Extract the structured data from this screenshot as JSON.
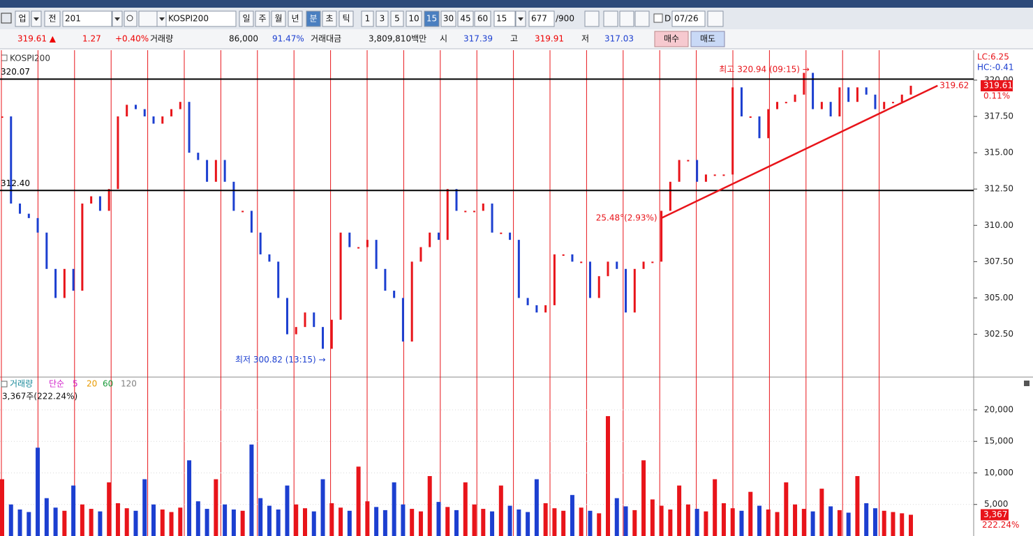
{
  "toolbar": {
    "market": "업",
    "mode": "전",
    "code": "201",
    "name": "KOSPI200",
    "periods": [
      "일",
      "주",
      "월",
      "년",
      "분",
      "초",
      "틱"
    ],
    "selected_period": "분",
    "intervals": [
      "1",
      "3",
      "5",
      "10",
      "15",
      "30",
      "45",
      "60"
    ],
    "selected_interval": "15",
    "interval": "15",
    "count": "677",
    "max": "/900",
    "day_check": "D",
    "date": "07/26"
  },
  "quote": {
    "price": "319.61 ▲",
    "change": "1.27",
    "change_pct": "+0.40%",
    "volume_label": "거래량",
    "volume": "86,000",
    "volume_ratio": "91.47%",
    "amount_label": "거래대금",
    "amount": "3,809,810백만",
    "open_label": "시",
    "open": "317.39",
    "high_label": "고",
    "high": "319.91",
    "low_label": "저",
    "low": "317.03",
    "buy": "매수",
    "sell": "매도"
  },
  "chart_data": [
    {
      "type": "line",
      "title": "KOSPI200",
      "color": "#e8141a",
      "down_color": "#1c3fd0",
      "values": [
        317.5,
        311.5,
        310.8,
        310.5,
        309.5,
        307,
        305,
        307,
        305.5,
        311.5,
        312,
        311,
        312.5,
        317.5,
        318.3,
        318,
        317.5,
        317,
        317.5,
        318,
        318.5,
        315,
        314.5,
        313,
        314.5,
        313,
        311,
        311,
        309.5,
        308,
        307.5,
        305,
        302.5,
        303,
        304,
        303,
        301.5,
        303.5,
        309.5,
        308.5,
        308.5,
        309,
        307,
        305.5,
        305,
        302,
        307.5,
        308.5,
        309.5,
        309,
        312.5,
        311,
        311,
        311,
        311.5,
        309.5,
        309.5,
        309,
        305,
        304.5,
        304,
        304.5,
        308,
        308,
        307.5,
        307.5,
        305,
        306.5,
        307.5,
        307,
        304,
        307,
        307.5,
        307.5,
        311,
        313,
        314.5,
        314.5,
        313,
        313.5,
        313.5,
        313.5,
        319.5,
        317.5,
        317.5,
        316,
        318,
        318.5,
        318.5,
        319,
        320.5,
        318,
        318.5,
        317.5,
        319.5,
        318.5,
        319.5,
        319,
        318,
        318.5,
        318.5,
        319,
        319.61
      ],
      "ylim": [
        299.6,
        322.06
      ],
      "yticks": [
        {
          "value": 302.5,
          "label": "302.50"
        },
        {
          "value": 305,
          "label": "305.00"
        },
        {
          "value": 307.5,
          "label": "307.50"
        },
        {
          "value": 310,
          "label": "310.00"
        },
        {
          "value": 312.5,
          "label": "312.50"
        },
        {
          "value": 315,
          "label": "315.00"
        },
        {
          "value": 317.5,
          "label": "317.50"
        },
        {
          "value": 320,
          "label": "320.00"
        }
      ],
      "grid": false,
      "hlines": [
        {
          "value": 320.07,
          "label": "320.07"
        },
        {
          "value": 312.4,
          "label": "312.40"
        }
      ],
      "high_label": "최고 320.94 (09:15) →",
      "low_label": "최저 300.82 (13:15) →",
      "trendline": {
        "x": [
          74,
          105
        ],
        "values": [
          310.5,
          319.62
        ],
        "value_labels": [
          "25.48°(2.93%)",
          "319.62"
        ]
      },
      "lc": "LC:6.25",
      "hc": "HC:-0.41",
      "last": "319.61",
      "last_pct": "0.11%"
    },
    {
      "type": "bar",
      "title": "거래량",
      "ma_label": "단순",
      "ma": [
        {
          "name": "5",
          "color": "#d01cc8"
        },
        {
          "name": "20",
          "color": "#e89a00"
        },
        {
          "name": "60",
          "color": "#1a9a3a"
        },
        {
          "name": "120",
          "color": "#808080"
        }
      ],
      "info": "3,367주(222.24%)",
      "color": "#e8141a",
      "down_color": "#1c3fd0",
      "values": [
        9000,
        5000,
        4200,
        3800,
        14000,
        6000,
        4500,
        4000,
        8000,
        5000,
        4300,
        3900,
        8500,
        5200,
        4400,
        4000,
        9000,
        5000,
        4200,
        3800,
        4500,
        12000,
        5500,
        4300,
        9000,
        5000,
        4200,
        4000,
        14500,
        6000,
        4800,
        4200,
        8000,
        5000,
        4400,
        3900,
        9000,
        5200,
        4500,
        4000,
        11000,
        5500,
        4600,
        4100,
        8500,
        5000,
        4300,
        3900,
        9500,
        5400,
        4600,
        4100,
        8500,
        5000,
        4300,
        3900,
        8000,
        4800,
        4200,
        3800,
        9000,
        5200,
        4400,
        4000,
        6500,
        4500,
        4000,
        3600,
        19000,
        6000,
        4700,
        4100,
        12000,
        5800,
        4800,
        4200,
        8000,
        5000,
        4300,
        3900,
        9000,
        5200,
        4400,
        4000,
        7000,
        4800,
        4200,
        3800,
        8500,
        5000,
        4300,
        3900,
        7500,
        4700,
        4100,
        3700,
        9500,
        5200,
        4400,
        4000,
        3800,
        3600,
        3367
      ],
      "ylim": [
        0,
        24750
      ],
      "yticks": [
        {
          "value": 5000,
          "label": "5,000"
        },
        {
          "value": 10000,
          "label": "10,000"
        },
        {
          "value": 15000,
          "label": "15,000"
        },
        {
          "value": 20000,
          "label": "20,000"
        }
      ],
      "grid": true,
      "last": "3,367",
      "last_pct": "222.24%"
    }
  ]
}
